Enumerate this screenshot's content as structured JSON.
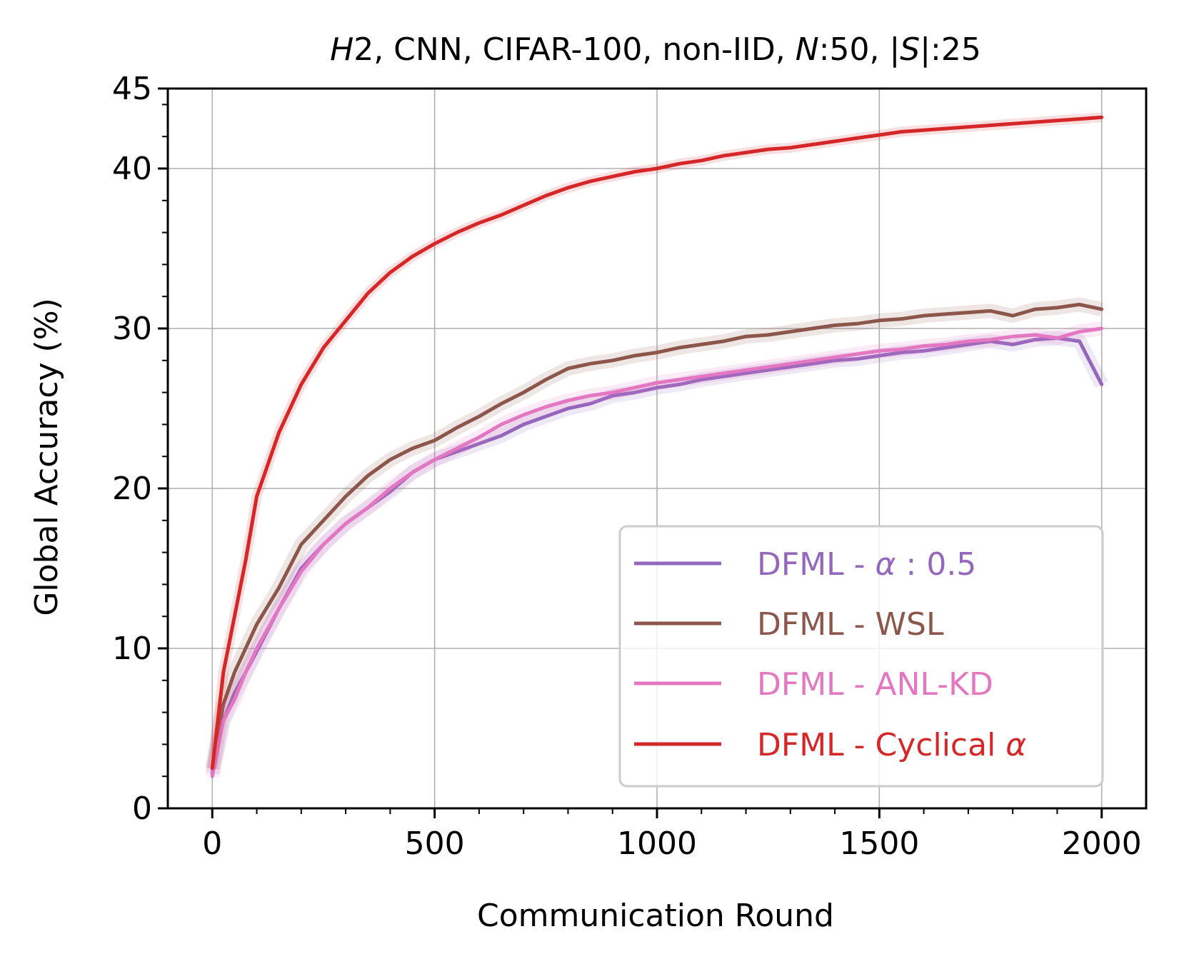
{
  "chart_data": {
    "type": "line",
    "title": {
      "parts": [
        {
          "text": "H",
          "italic": true
        },
        {
          "text": "2, CNN, CIFAR-100, non-IID, ",
          "italic": false
        },
        {
          "text": "N",
          "italic": true
        },
        {
          "text": ":50, |",
          "italic": false
        },
        {
          "text": "S",
          "italic": true
        },
        {
          "text": "|:25",
          "italic": false
        }
      ]
    },
    "xlabel": "Communication Round",
    "ylabel": "Global Accuracy (%)",
    "xlim": [
      -100,
      2100
    ],
    "ylim": [
      0,
      45
    ],
    "xticks": [
      0,
      500,
      1000,
      1500,
      2000
    ],
    "yticks": [
      0,
      10,
      20,
      30,
      40,
      45
    ],
    "grid": true,
    "legend_position": "lower-right",
    "series": [
      {
        "name": "DFML - α: 0.5",
        "legend_parts": [
          {
            "text": "DFML - ",
            "italic": false
          },
          {
            "text": "α",
            "italic": true
          },
          {
            "text": " : 0.5",
            "italic": false
          }
        ],
        "color": "#9467bd",
        "x": [
          0,
          25,
          50,
          75,
          100,
          150,
          200,
          250,
          300,
          350,
          400,
          450,
          500,
          550,
          600,
          650,
          700,
          750,
          800,
          850,
          900,
          950,
          1000,
          1050,
          1100,
          1150,
          1200,
          1250,
          1300,
          1350,
          1400,
          1450,
          1500,
          1550,
          1600,
          1650,
          1700,
          1750,
          1800,
          1850,
          1900,
          1950,
          2000
        ],
        "y": [
          2.2,
          5.5,
          7.2,
          8.5,
          9.8,
          12.5,
          15.0,
          16.5,
          17.8,
          18.8,
          19.8,
          21.0,
          21.8,
          22.3,
          22.8,
          23.3,
          24.0,
          24.5,
          25.0,
          25.3,
          25.8,
          26.0,
          26.3,
          26.5,
          26.8,
          27.0,
          27.2,
          27.4,
          27.6,
          27.8,
          28.0,
          28.1,
          28.3,
          28.5,
          28.6,
          28.8,
          29.0,
          29.2,
          29.0,
          29.3,
          29.4,
          29.2,
          26.5
        ]
      },
      {
        "name": "DFML - WSL",
        "legend_parts": [
          {
            "text": "DFML - WSL",
            "italic": false
          }
        ],
        "color": "#8c564b",
        "x": [
          0,
          25,
          50,
          75,
          100,
          150,
          200,
          250,
          300,
          350,
          400,
          450,
          500,
          550,
          600,
          650,
          700,
          750,
          800,
          850,
          900,
          950,
          1000,
          1050,
          1100,
          1150,
          1200,
          1250,
          1300,
          1350,
          1400,
          1450,
          1500,
          1550,
          1600,
          1650,
          1700,
          1750,
          1800,
          1850,
          1900,
          1950,
          2000
        ],
        "y": [
          2.5,
          6.5,
          8.5,
          10.0,
          11.5,
          13.8,
          16.5,
          18.0,
          19.5,
          20.8,
          21.8,
          22.5,
          23.0,
          23.8,
          24.5,
          25.3,
          26.0,
          26.8,
          27.5,
          27.8,
          28.0,
          28.3,
          28.5,
          28.8,
          29.0,
          29.2,
          29.5,
          29.6,
          29.8,
          30.0,
          30.2,
          30.3,
          30.5,
          30.6,
          30.8,
          30.9,
          31.0,
          31.1,
          30.8,
          31.2,
          31.3,
          31.5,
          31.2
        ]
      },
      {
        "name": "DFML - ANL-KD",
        "legend_parts": [
          {
            "text": "DFML - ANL-KD",
            "italic": false
          }
        ],
        "color": "#e377c2",
        "x": [
          0,
          25,
          50,
          75,
          100,
          150,
          200,
          250,
          300,
          350,
          400,
          450,
          500,
          550,
          600,
          650,
          700,
          750,
          800,
          850,
          900,
          950,
          1000,
          1050,
          1100,
          1150,
          1200,
          1250,
          1300,
          1350,
          1400,
          1450,
          1500,
          1550,
          1600,
          1650,
          1700,
          1750,
          1800,
          1850,
          1900,
          1950,
          2000
        ],
        "y": [
          2.0,
          5.5,
          6.8,
          8.5,
          10.0,
          12.5,
          14.8,
          16.5,
          17.8,
          18.8,
          20.0,
          21.0,
          21.8,
          22.5,
          23.2,
          24.0,
          24.6,
          25.1,
          25.5,
          25.8,
          26.0,
          26.3,
          26.6,
          26.8,
          27.0,
          27.2,
          27.4,
          27.6,
          27.8,
          28.0,
          28.2,
          28.4,
          28.6,
          28.7,
          28.9,
          29.0,
          29.2,
          29.3,
          29.5,
          29.6,
          29.4,
          29.8,
          30.0
        ]
      },
      {
        "name": "DFML - Cyclical α",
        "legend_parts": [
          {
            "text": "DFML - Cyclical ",
            "italic": false
          },
          {
            "text": "α",
            "italic": true
          }
        ],
        "color": "#d62728",
        "x": [
          0,
          25,
          50,
          75,
          100,
          125,
          150,
          175,
          200,
          250,
          300,
          350,
          400,
          450,
          500,
          550,
          600,
          650,
          700,
          750,
          800,
          850,
          900,
          950,
          1000,
          1050,
          1100,
          1150,
          1200,
          1250,
          1300,
          1350,
          1400,
          1450,
          1500,
          1550,
          1600,
          1650,
          1700,
          1750,
          1800,
          1850,
          1900,
          1950,
          2000
        ],
        "y": [
          2.5,
          8.5,
          12.0,
          15.5,
          19.5,
          21.5,
          23.5,
          25.0,
          26.5,
          28.8,
          30.5,
          32.2,
          33.5,
          34.5,
          35.3,
          36.0,
          36.6,
          37.1,
          37.7,
          38.3,
          38.8,
          39.2,
          39.5,
          39.8,
          40.0,
          40.3,
          40.5,
          40.8,
          41.0,
          41.2,
          41.3,
          41.5,
          41.7,
          41.9,
          42.1,
          42.3,
          42.4,
          42.5,
          42.6,
          42.7,
          42.8,
          42.9,
          43.0,
          43.1,
          43.2
        ]
      }
    ]
  }
}
